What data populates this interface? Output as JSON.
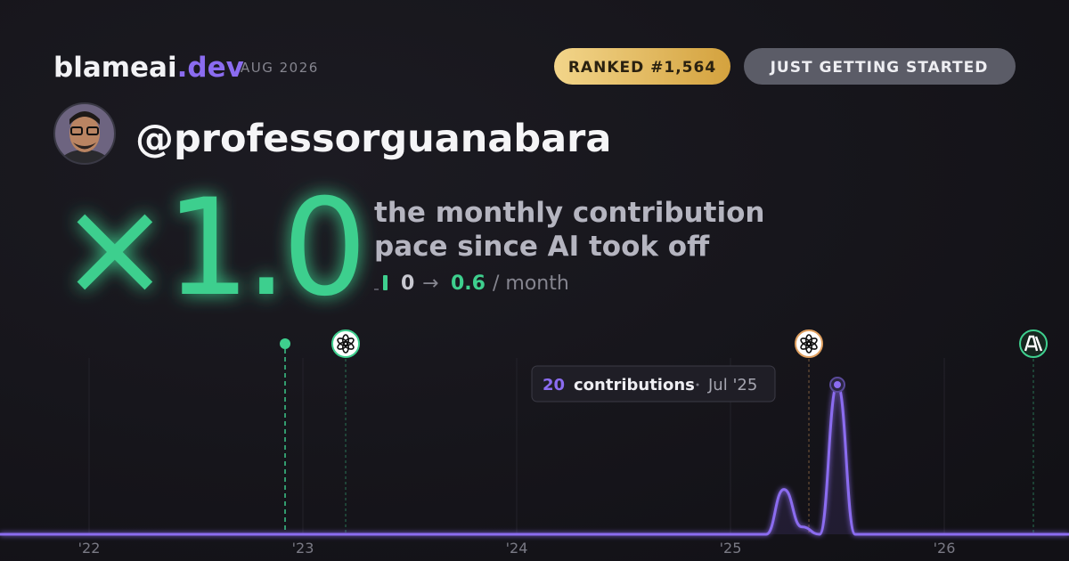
{
  "header": {
    "brand": "blameai",
    "brand_tld": ".dev",
    "date": "AUG 2026",
    "rank": "RANKED #1,564",
    "status": "JUST GETTING STARTED"
  },
  "profile": {
    "handle": "@professorguanabara"
  },
  "stats": {
    "multiplier": "×1.0",
    "caption": [
      "the monthly contribution",
      "pace since AI took off"
    ],
    "pace_before": "0",
    "arrow": "→",
    "pace_after": "0.6",
    "unit": "/ month"
  },
  "chart_data": {
    "type": "line",
    "x": [
      2021.5833,
      2025.0833,
      2025.1667,
      2025.25,
      2025.3333,
      2025.4167,
      2025.5,
      2025.5833,
      2026.5833
    ],
    "values": [
      0,
      0,
      0,
      6,
      1,
      0,
      20,
      0,
      0
    ],
    "color": "#8b6cf0",
    "xlim": [
      2021.5833,
      2026.5833
    ],
    "ylim": [
      0,
      20
    ],
    "xticks": [
      {
        "value": 2022,
        "label": "'22"
      },
      {
        "value": 2023,
        "label": "'23"
      },
      {
        "value": 2024,
        "label": "'24"
      },
      {
        "value": 2025,
        "label": "'25"
      },
      {
        "value": 2026,
        "label": "'26"
      }
    ],
    "grid": true,
    "events": [
      {
        "x": 2022.9167,
        "icon": "dot",
        "color": "#3ecf8e"
      },
      {
        "x": 2023.2,
        "icon": "openai",
        "color": "#3ecf8e"
      },
      {
        "x": 2025.3667,
        "icon": "openai",
        "color": "#e0a060"
      },
      {
        "x": 2026.4167,
        "icon": "anthropic",
        "color": "#3ecf8e"
      }
    ],
    "tooltip": {
      "index": 6,
      "label": "contributions",
      "date": "Jul '25"
    }
  }
}
